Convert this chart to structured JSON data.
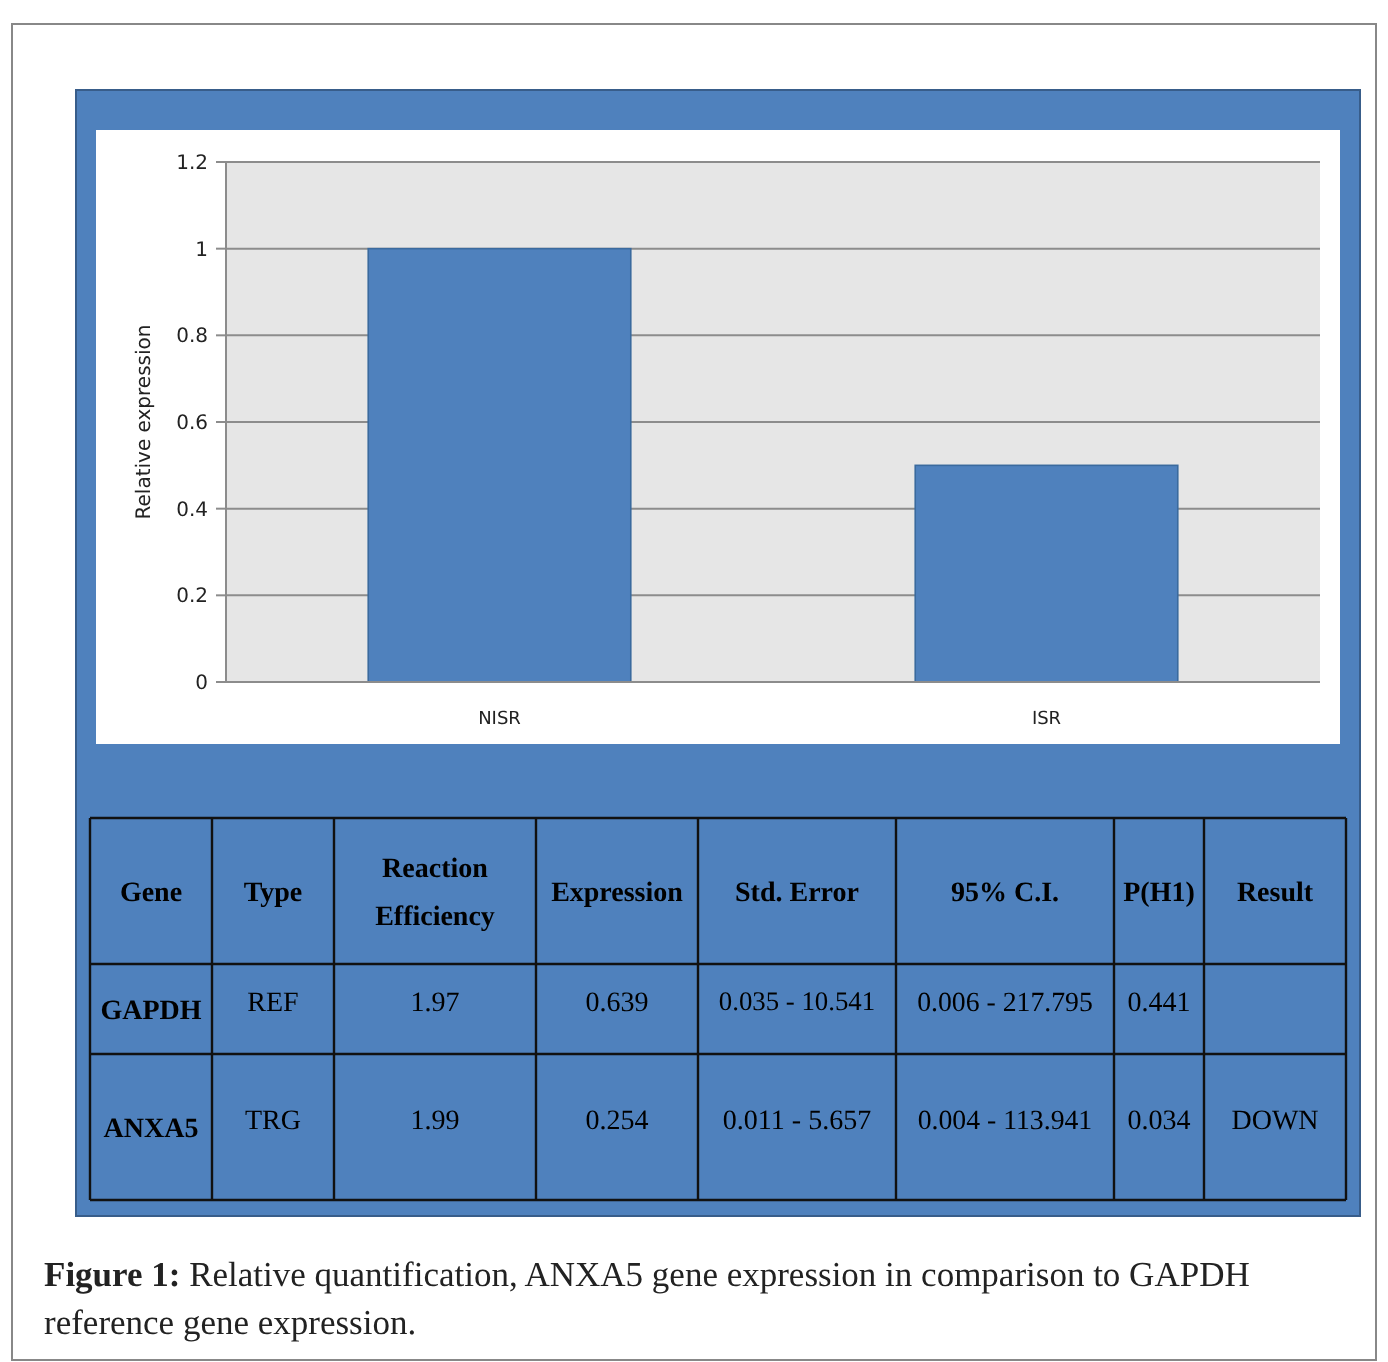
{
  "chart_data": [
    {
      "type": "bar",
      "categories": [
        "NISR",
        "ISR"
      ],
      "values": [
        1,
        0.5
      ],
      "color": "#4f81bd",
      "ylabel": "Relative expression",
      "ylim": [
        0,
        1.2
      ],
      "yticks": [
        0,
        0.2,
        0.4,
        0.6,
        0.8,
        1,
        1.2
      ],
      "grid": "y",
      "annotations": [
        "Figure 1:",
        "Relative quantification, ANXA5 gene expression in comparison to GAPDH reference gene expression."
      ]
    },
    {
      "type": "other",
      "categories": [
        "Gene",
        "Type",
        "Reaction Efficiency",
        "Expression",
        "Std. Error",
        "95% C.I.",
        "P(H1)",
        "Result"
      ],
      "cell_labels": [
        [
          "GAPDH",
          "REF",
          "1.97",
          "0.639",
          "0.035 - 10.541",
          "0.006 - 217.795",
          "0.441",
          null
        ],
        [
          "ANXA5",
          "TRG",
          "1.99",
          "0.254",
          "0.011 - 5.657",
          "0.004 - 113.941",
          "0.034",
          "DOWN"
        ]
      ]
    }
  ]
}
